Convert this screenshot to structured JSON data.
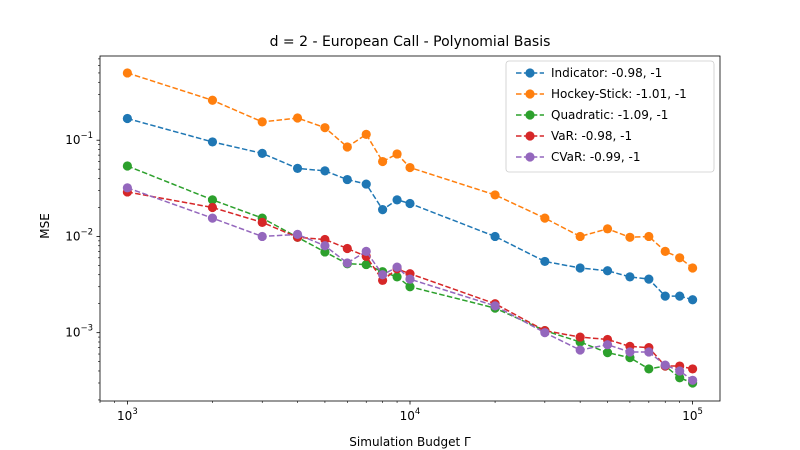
{
  "chart_data": {
    "type": "line",
    "title": "d = 2 - European Call - Polynomial Basis",
    "xlabel": "Simulation Budget Γ",
    "ylabel": "MSE",
    "xscale": "log",
    "yscale": "log",
    "xlim": [
      800,
      125000
    ],
    "ylim": [
      0.000195,
      0.75
    ],
    "xticks": [
      {
        "value": 1000,
        "base": "10",
        "exp": "3"
      },
      {
        "value": 10000,
        "base": "10",
        "exp": "4"
      },
      {
        "value": 100000,
        "base": "10",
        "exp": "5"
      }
    ],
    "yticks": [
      {
        "value": 0.001,
        "base": "10",
        "exp": "−3"
      },
      {
        "value": 0.01,
        "base": "10",
        "exp": "−2"
      },
      {
        "value": 0.1,
        "base": "10",
        "exp": "−1"
      }
    ],
    "grid": false,
    "legend_position": "top-right",
    "x": [
      1000,
      2000,
      3000,
      4000,
      5000,
      6000,
      7000,
      8000,
      9000,
      10000,
      20000,
      30000,
      40000,
      50000,
      60000,
      70000,
      80000,
      90000,
      100000
    ],
    "series": [
      {
        "name": "Indicator: -0.98, -1",
        "color": "#1f77b4",
        "values": [
          0.168,
          0.096,
          0.073,
          0.051,
          0.048,
          0.039,
          0.035,
          0.019,
          0.024,
          0.022,
          0.01,
          0.0055,
          0.0047,
          0.0044,
          0.0038,
          0.0036,
          0.0024,
          0.0024,
          0.0022
        ]
      },
      {
        "name": "Hockey-Stick: -1.01, -1",
        "color": "#ff7f0e",
        "values": [
          0.5,
          0.26,
          0.155,
          0.17,
          0.135,
          0.085,
          0.115,
          0.06,
          0.072,
          0.052,
          0.027,
          0.0155,
          0.01,
          0.012,
          0.0098,
          0.01,
          0.007,
          0.006,
          0.0047
        ]
      },
      {
        "name": "Quadratic: -1.09, -1",
        "color": "#2ca02c",
        "values": [
          0.054,
          0.024,
          0.0155,
          0.0098,
          0.0069,
          0.0052,
          0.0051,
          0.0043,
          0.0038,
          0.003,
          0.0018,
          0.00105,
          0.0008,
          0.00062,
          0.00055,
          0.00042,
          0.00045,
          0.00034,
          0.0003
        ]
      },
      {
        "name": "VaR: -0.98, -1",
        "color": "#d62728",
        "values": [
          0.029,
          0.02,
          0.014,
          0.0098,
          0.0093,
          0.0075,
          0.0062,
          0.0035,
          0.0046,
          0.0041,
          0.002,
          0.00105,
          0.0009,
          0.00085,
          0.00072,
          0.0007,
          0.00045,
          0.00045,
          0.00042
        ]
      },
      {
        "name": "CVaR: -0.99, -1",
        "color": "#9467bd",
        "values": [
          0.032,
          0.0155,
          0.01,
          0.0105,
          0.008,
          0.0053,
          0.007,
          0.004,
          0.0048,
          0.0036,
          0.0019,
          0.001,
          0.00066,
          0.00075,
          0.00063,
          0.00063,
          0.00046,
          0.0004,
          0.00032
        ]
      }
    ]
  }
}
